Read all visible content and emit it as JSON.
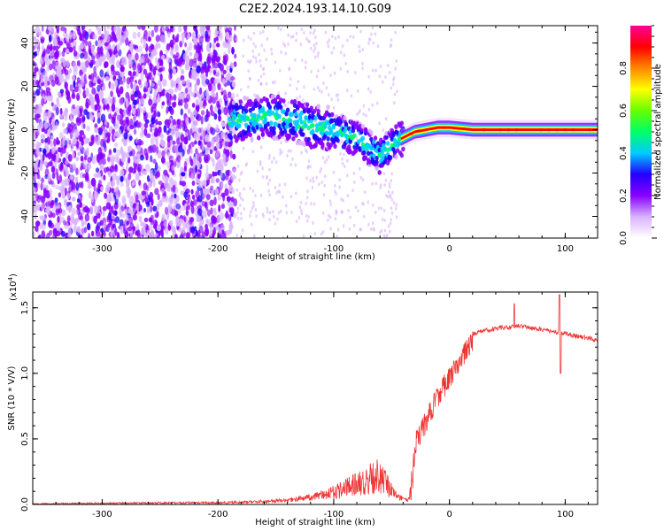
{
  "title": "C2E2.2024.193.14.10.G09",
  "chart_data": [
    {
      "type": "heatmap",
      "name": "spectrogram",
      "xlabel": "Height of straight line (km)",
      "ylabel": "Frequency (Hz)",
      "xlim": [
        -360,
        128
      ],
      "ylim": [
        -50,
        48
      ],
      "x_ticks": [
        -300,
        -200,
        -100,
        0,
        100
      ],
      "y_ticks": [
        -40,
        -20,
        0,
        20,
        40
      ],
      "colorbar": {
        "label": "Normalized spectral amplitude",
        "range": [
          0,
          1
        ],
        "ticks": [
          0.0,
          0.2,
          0.4,
          0.6,
          0.8
        ],
        "tick_labels": [
          "0.0",
          "0.2",
          "0.4",
          "0.6",
          "0.8"
        ],
        "colormap": [
          "#ffffff",
          "#d9b3ff",
          "#8800ff",
          "#2200ff",
          "#00ccff",
          "#00ff66",
          "#66ff00",
          "#ffff00",
          "#ff8800",
          "#ff0000",
          "#ff0099"
        ]
      },
      "ridge": [
        {
          "x": -190,
          "y": 4
        },
        {
          "x": -160,
          "y": 6
        },
        {
          "x": -140,
          "y": 5
        },
        {
          "x": -120,
          "y": 2
        },
        {
          "x": -100,
          "y": 0
        },
        {
          "x": -80,
          "y": -4
        },
        {
          "x": -60,
          "y": -12
        },
        {
          "x": -45,
          "y": -5
        },
        {
          "x": -30,
          "y": -1
        },
        {
          "x": -10,
          "y": 1
        },
        {
          "x": 0,
          "y": 1
        },
        {
          "x": 20,
          "y": 0
        },
        {
          "x": 60,
          "y": 0
        },
        {
          "x": 100,
          "y": 0
        },
        {
          "x": 128,
          "y": 0
        }
      ]
    },
    {
      "type": "line",
      "name": "snr",
      "xlabel": "Height of straight line (km)",
      "ylabel": "SNR (10 * V/V)",
      "y_multiplier": "(x10",
      "y_multiplier_exp": "4",
      "y_multiplier_close": ")",
      "xlim": [
        -360,
        128
      ],
      "ylim": [
        0,
        1.62
      ],
      "x_ticks": [
        -300,
        -200,
        -100,
        0,
        100
      ],
      "y_ticks": [
        0.0,
        0.5,
        1.0,
        1.5
      ],
      "y_tick_labels": [
        "0.0",
        "0.5",
        "1.0",
        "1.5"
      ],
      "line_color": "#ee3333",
      "envelope": [
        {
          "x": -360,
          "y": 0.01
        },
        {
          "x": -300,
          "y": 0.015
        },
        {
          "x": -250,
          "y": 0.02
        },
        {
          "x": -200,
          "y": 0.02
        },
        {
          "x": -170,
          "y": 0.03
        },
        {
          "x": -140,
          "y": 0.05
        },
        {
          "x": -120,
          "y": 0.08
        },
        {
          "x": -100,
          "y": 0.15
        },
        {
          "x": -85,
          "y": 0.22
        },
        {
          "x": -72,
          "y": 0.3
        },
        {
          "x": -62,
          "y": 0.35
        },
        {
          "x": -55,
          "y": 0.25
        },
        {
          "x": -45,
          "y": 0.08
        },
        {
          "x": -35,
          "y": 0.05
        },
        {
          "x": -30,
          "y": 0.55
        },
        {
          "x": -20,
          "y": 0.72
        },
        {
          "x": -10,
          "y": 0.92
        },
        {
          "x": 0,
          "y": 1.05
        },
        {
          "x": 10,
          "y": 1.2
        },
        {
          "x": 20,
          "y": 1.32
        },
        {
          "x": 40,
          "y": 1.36
        },
        {
          "x": 60,
          "y": 1.38
        },
        {
          "x": 80,
          "y": 1.35
        },
        {
          "x": 100,
          "y": 1.32
        },
        {
          "x": 128,
          "y": 1.27
        }
      ],
      "spikes": [
        {
          "x": 56,
          "y": 1.53
        },
        {
          "x": 95,
          "y": 1.6
        },
        {
          "x": 96,
          "y": 1.0
        }
      ]
    }
  ]
}
